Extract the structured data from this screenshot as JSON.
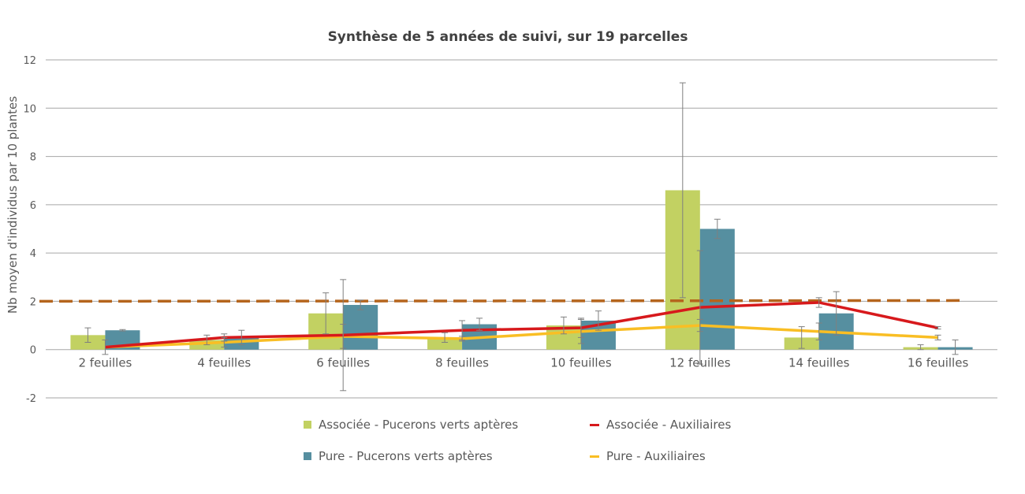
{
  "chart_data": {
    "type": "bar",
    "title": "Synthèse de 5 années de suivi, sur 19 parcelles",
    "xlabel": "",
    "ylabel": "Nb moyen d'individus par 10 plantes",
    "ylim": [
      -2,
      12
    ],
    "yticks": [
      "-2",
      "0",
      "2",
      "4",
      "6",
      "8",
      "10",
      "12"
    ],
    "grid": true,
    "legend_position": "bottom",
    "categories": [
      "2 feuilles",
      "4 feuilles",
      "6 feuilles",
      "8 feuilles",
      "10 feuilles",
      "12 feuilles",
      "14 feuilles",
      "16 feuilles"
    ],
    "series": [
      {
        "name": "Associée - Pucerons verts aptères",
        "kind": "bar",
        "color": "#c2d162",
        "values": [
          0.6,
          0.4,
          1.5,
          0.5,
          1.0,
          6.6,
          0.5,
          0.1
        ],
        "errors": [
          0.3,
          0.2,
          0.85,
          0.2,
          0.35,
          4.45,
          0.45,
          0.1
        ]
      },
      {
        "name": "Pure - Pucerons verts aptères",
        "kind": "bar",
        "color": "#568fa0",
        "values": [
          0.8,
          0.5,
          1.85,
          1.05,
          1.2,
          5.0,
          1.5,
          0.1
        ],
        "errors": [
          0.03,
          0.3,
          0.2,
          0.25,
          0.4,
          0.4,
          0.9,
          0.3
        ]
      },
      {
        "name": "Associée - Auxiliaires",
        "kind": "line",
        "color": "#d7191c",
        "values": [
          0.1,
          0.5,
          0.6,
          0.8,
          0.9,
          1.75,
          1.95,
          0.9
        ],
        "errors": [
          0.3,
          0.15,
          2.3,
          0.4,
          0.4,
          2.35,
          0.2,
          0.05
        ]
      },
      {
        "name": "Pure - Auxiliaires",
        "kind": "line",
        "color": "#f9be24",
        "values": [
          0.1,
          0.3,
          0.55,
          0.45,
          0.75,
          1.0,
          0.75,
          0.5
        ],
        "errors": [
          0.0,
          0.2,
          0.5,
          0.1,
          0.5,
          0.25,
          0.35,
          0.1
        ]
      }
    ],
    "reference_line": {
      "value": 2.0,
      "color": "#b5651d",
      "style": "dashed"
    }
  }
}
